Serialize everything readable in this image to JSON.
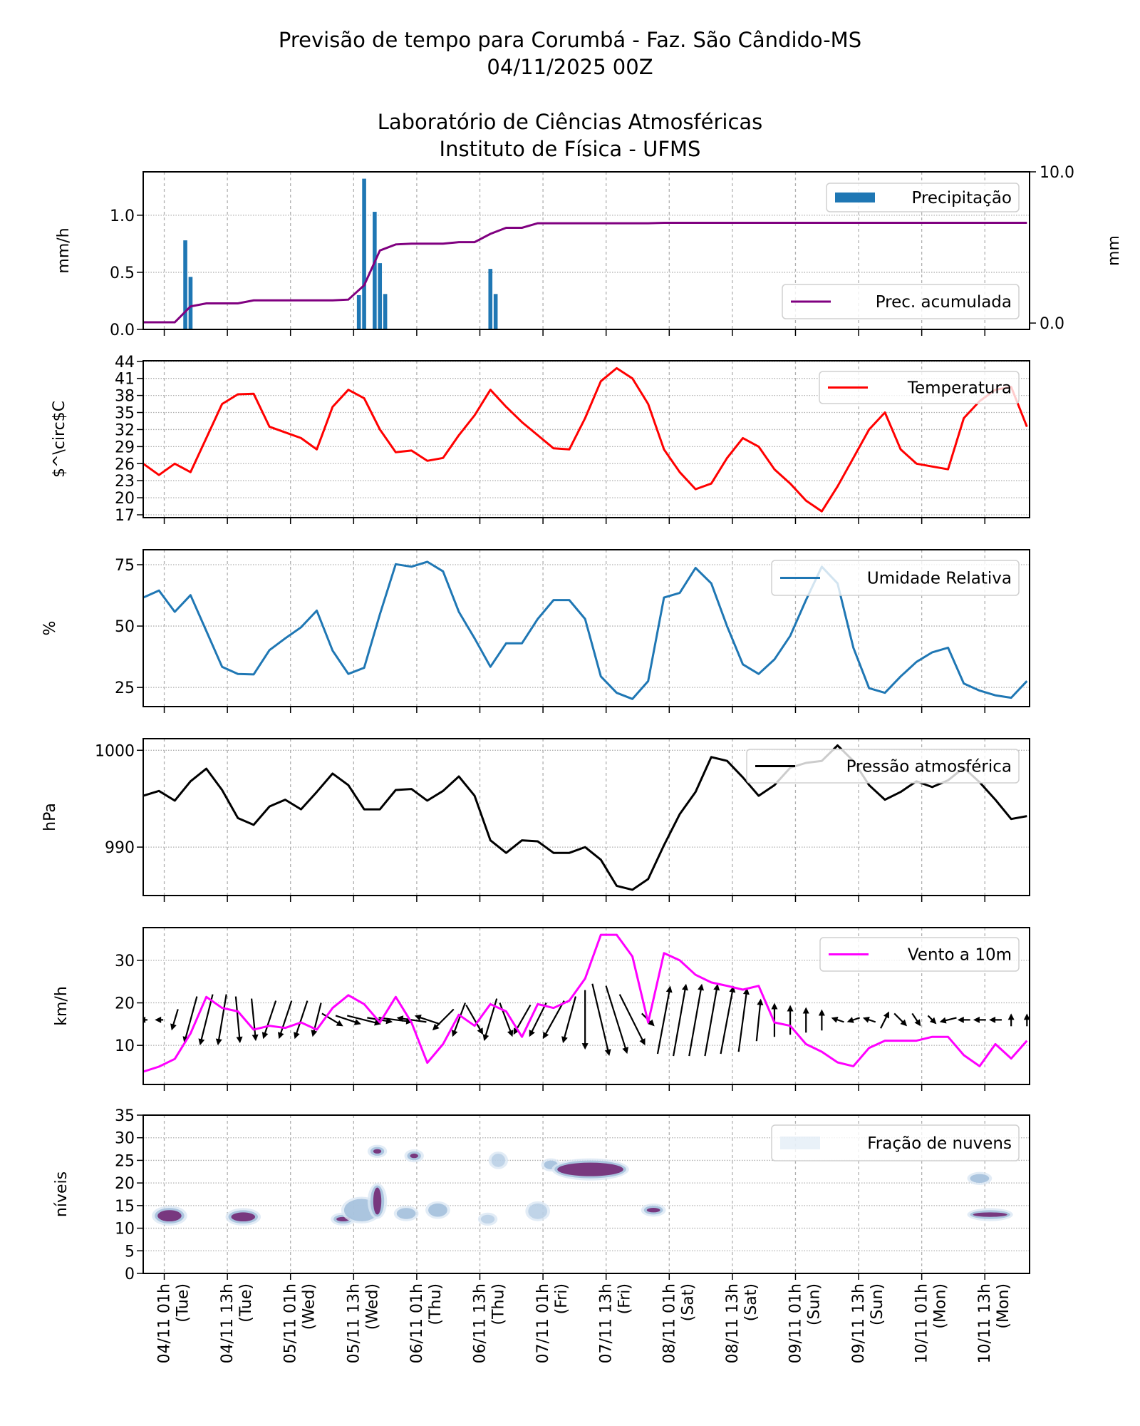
{
  "header": {
    "title_line1": "Previsão de tempo para Corumbá - Faz. São Cândido-MS",
    "title_line2": "04/11/2025 00Z",
    "subtitle_line1": "Laboratório de Ciências Atmosféricas",
    "subtitle_line2": "Instituto de Física - UFMS"
  },
  "chart_data": {
    "type": "multi-panel",
    "grid": true,
    "x": [
      "03/11 21h",
      "04/11 00h",
      "04/11 03h",
      "04/11 06h",
      "04/11 09h",
      "04/11 12h",
      "04/11 15h",
      "04/11 18h",
      "04/11 21h",
      "05/11 00h",
      "05/11 03h",
      "05/11 06h",
      "05/11 09h",
      "05/11 12h",
      "05/11 15h",
      "05/11 18h",
      "05/11 21h",
      "06/11 00h",
      "06/11 03h",
      "06/11 06h",
      "06/11 09h",
      "06/11 12h",
      "06/11 15h",
      "06/11 18h",
      "06/11 21h",
      "07/11 00h",
      "07/11 03h",
      "07/11 06h",
      "07/11 09h",
      "07/11 12h",
      "07/11 15h",
      "07/11 18h",
      "07/11 21h",
      "08/11 00h",
      "08/11 03h",
      "08/11 06h",
      "08/11 09h",
      "08/11 12h",
      "08/11 15h",
      "08/11 18h",
      "08/11 21h",
      "09/11 00h",
      "09/11 03h",
      "09/11 06h",
      "09/11 09h",
      "09/11 12h",
      "09/11 15h",
      "09/11 18h",
      "09/11 21h",
      "10/11 00h",
      "10/11 03h",
      "10/11 06h",
      "10/11 09h",
      "10/11 12h",
      "10/11 15h",
      "10/11 18h",
      "10/11 21h"
    ],
    "xticks": [
      {
        "date": "04/11 01h",
        "day": "(Tue)"
      },
      {
        "date": "04/11 13h",
        "day": "(Tue)"
      },
      {
        "date": "05/11 01h",
        "day": "(Wed)"
      },
      {
        "date": "05/11 13h",
        "day": "(Wed)"
      },
      {
        "date": "06/11 01h",
        "day": "(Thu)"
      },
      {
        "date": "06/11 13h",
        "day": "(Thu)"
      },
      {
        "date": "07/11 01h",
        "day": "(Fri)"
      },
      {
        "date": "07/11 13h",
        "day": "(Fri)"
      },
      {
        "date": "08/11 01h",
        "day": "(Sat)"
      },
      {
        "date": "08/11 13h",
        "day": "(Sat)"
      },
      {
        "date": "09/11 01h",
        "day": "(Sun)"
      },
      {
        "date": "09/11 13h",
        "day": "(Sun)"
      },
      {
        "date": "10/11 01h",
        "day": "(Mon)"
      },
      {
        "date": "10/11 13h",
        "day": "(Mon)"
      }
    ],
    "panels": [
      {
        "type": "bar+line",
        "ylabel": "mm/h",
        "ylim": [
          0,
          1.38
        ],
        "yticks": [
          "0.0",
          "0.5",
          "1.0"
        ],
        "y2label": "mm",
        "y2lim": [
          -0.42,
          10
        ],
        "y2ticks": [
          "0.0",
          "10.0"
        ],
        "bars": {
          "name": "Precipitação",
          "color": "#1f77b4",
          "values": [
            {
              "time": "04/11 05h",
              "value": 0.78
            },
            {
              "time": "04/11 06h",
              "value": 0.46
            },
            {
              "time": "05/11 14h",
              "value": 0.3
            },
            {
              "time": "05/11 15h",
              "value": 1.32
            },
            {
              "time": "05/11 17h",
              "value": 1.03
            },
            {
              "time": "05/11 18h",
              "value": 0.58
            },
            {
              "time": "05/11 19h",
              "value": 0.31
            },
            {
              "time": "06/11 15h",
              "value": 0.53
            },
            {
              "time": "06/11 16h",
              "value": 0.31
            }
          ]
        },
        "line": {
          "name": "Prec. acumulada",
          "color": "#800080",
          "axis": "right",
          "values": [
            0.05,
            0.05,
            0.05,
            1.1,
            1.3,
            1.3,
            1.3,
            1.5,
            1.5,
            1.5,
            1.5,
            1.5,
            1.5,
            1.55,
            2.5,
            4.8,
            5.2,
            5.25,
            5.25,
            5.25,
            5.35,
            5.35,
            5.9,
            6.3,
            6.3,
            6.6,
            6.6,
            6.6,
            6.6,
            6.6,
            6.6,
            6.6,
            6.6,
            6.63,
            6.63,
            6.63,
            6.63,
            6.63,
            6.63,
            6.63,
            6.63,
            6.63,
            6.63,
            6.63,
            6.63,
            6.63,
            6.63,
            6.63,
            6.63,
            6.63,
            6.63,
            6.63,
            6.63,
            6.63,
            6.63,
            6.63,
            6.63
          ]
        }
      },
      {
        "type": "line",
        "ylabel": "$^\\circ$C",
        "ylim": [
          16.5,
          44.1
        ],
        "yticks": [
          "17",
          "20",
          "23",
          "26",
          "29",
          "32",
          "35",
          "38",
          "41",
          "44"
        ],
        "series": [
          {
            "name": "Temperatura",
            "color": "#ff0000",
            "values": [
              26,
              24,
              26,
              24.5,
              30.5,
              36.5,
              38.2,
              38.3,
              32.5,
              31.5,
              30.5,
              28.5,
              36,
              39,
              37.5,
              32,
              28,
              28.3,
              26.5,
              27,
              31,
              34.5,
              39,
              36,
              33.3,
              31,
              28.7,
              28.5,
              34,
              40.5,
              42.8,
              41,
              36.5,
              28.5,
              24.5,
              21.5,
              22.5,
              27,
              30.5,
              29,
              25,
              22.5,
              19.5,
              17.6,
              22,
              27,
              32,
              35,
              28.5,
              26,
              25.5,
              25,
              34,
              37,
              39,
              39.5,
              32.5
            ]
          }
        ]
      },
      {
        "type": "line",
        "ylabel": "%",
        "ylim": [
          17.2,
          81.1
        ],
        "yticks": [
          "25",
          "50",
          "75"
        ],
        "series": [
          {
            "name": "Umidade Relativa",
            "color": "#1f77b4",
            "values": [
              61.6,
              64.5,
              55.8,
              62.6,
              48,
              33.4,
              30.5,
              30.3,
              40.2,
              45,
              49.5,
              56.3,
              40,
              30.5,
              33,
              54.8,
              75.2,
              74.2,
              76.2,
              72.3,
              55.8,
              45,
              33.4,
              43,
              43,
              52.9,
              60.6,
              60.6,
              52.9,
              29.5,
              22.8,
              20.3,
              27.6,
              61.6,
              63.5,
              73.7,
              67.4,
              49.9,
              34.4,
              30.5,
              36.4,
              46,
              60.6,
              74.2,
              67.4,
              41.2,
              24.7,
              22.8,
              29.5,
              35.4,
              39.3,
              41.2,
              26.6,
              23.7,
              21.8,
              20.8,
              27.6
            ]
          }
        ]
      },
      {
        "type": "line",
        "ylabel": "hPa",
        "ylim": [
          985.0,
          1001.2
        ],
        "yticks": [
          "990",
          "1000"
        ],
        "series": [
          {
            "name": "Pressão atmosférica",
            "color": "#000000",
            "values": [
              995.3,
              995.8,
              994.8,
              996.8,
              998.1,
              995.9,
              993,
              992.3,
              994.2,
              994.9,
              993.9,
              995.7,
              997.6,
              996.4,
              993.9,
              993.9,
              995.9,
              996,
              994.8,
              995.8,
              997.3,
              995.3,
              990.7,
              989.4,
              990.7,
              990.6,
              989.4,
              989.4,
              990,
              988.7,
              986,
              985.6,
              986.7,
              990.2,
              993.4,
              995.7,
              999.3,
              998.9,
              997.2,
              995.3,
              996.4,
              998.2,
              998.7,
              998.9,
              1000.5,
              998.9,
              996.4,
              994.9,
              995.7,
              996.8,
              996.2,
              996.9,
              998.2,
              996.7,
              994.9,
              992.9,
              993.2
            ]
          }
        ]
      },
      {
        "type": "line+quiver",
        "ylabel": "km/h",
        "ylim": [
          0.8,
          37.7
        ],
        "yticks": [
          "10",
          "20",
          "30"
        ],
        "series": [
          {
            "name": "Vento a 10m",
            "color": "#ff00ff",
            "values": [
              3.8,
              5,
              6.8,
              12.8,
              21.4,
              18.8,
              18,
              13.7,
              14.6,
              14.1,
              15.4,
              13.7,
              18.8,
              21.8,
              19.7,
              15.4,
              21.4,
              15.4,
              5.9,
              10.3,
              17.2,
              14.6,
              19.7,
              18,
              12,
              19.7,
              18.8,
              20.5,
              25.7,
              36,
              36,
              30.9,
              15.4,
              31.7,
              30,
              26.6,
              24.8,
              24,
              23.1,
              24,
              15.4,
              14.6,
              10.3,
              8.5,
              6,
              5.1,
              9.4,
              11.1,
              11.1,
              11.1,
              12,
              12,
              7.7,
              5.1,
              10.3,
              6.9,
              11.1
            ]
          }
        ],
        "quiver": {
          "color": "#000000",
          "anchor_kmh": 16,
          "u": [
            -2,
            -2,
            -1.5,
            -3,
            -3,
            -2,
            1,
            1,
            -3,
            -3,
            -3,
            -2,
            5,
            6,
            8,
            6,
            8,
            -7,
            -6,
            -5,
            -3,
            4,
            -3,
            3,
            -4,
            -4,
            -5,
            -3,
            0,
            4,
            5,
            6,
            3,
            3,
            3,
            3,
            3,
            3,
            2,
            1,
            0,
            0,
            0,
            0,
            -3,
            -3,
            -3,
            2,
            3,
            2,
            2,
            -4,
            -3,
            -3,
            -3,
            0,
            0
          ],
          "v": [
            0,
            0,
            -5,
            -11,
            -12,
            -12,
            -11,
            -10,
            -9,
            -9,
            -9,
            -8,
            -3,
            -2,
            -2,
            -1,
            -1,
            1,
            2,
            -5,
            -8,
            -7,
            -10,
            -8,
            -7,
            -8,
            -9,
            -11,
            -14,
            -17,
            -16,
            -12,
            -3,
            16,
            17,
            17,
            17,
            16,
            15,
            10,
            8,
            7,
            6,
            5,
            1,
            -1,
            1,
            4,
            -3,
            -3,
            -2,
            -1,
            0,
            0,
            0,
            3,
            3
          ]
        }
      },
      {
        "type": "contour",
        "ylabel": "níveis",
        "ylim": [
          0,
          35
        ],
        "yticks": [
          "0",
          "5",
          "10",
          "15",
          "20",
          "25",
          "30",
          "35"
        ],
        "legend": "Fração de nuvens",
        "colormap": [
          "#dbe7f4",
          "#9ebcda",
          "#8c6bb1",
          "#6e1e6e"
        ],
        "clouds": [
          {
            "start": "04/11 00h",
            "end": "04/11 04h",
            "levels": [
              11.5,
              14
            ],
            "fraction": 0.9
          },
          {
            "start": "04/11 14h",
            "end": "04/11 18h",
            "levels": [
              11.5,
              13.5
            ],
            "fraction": 0.8
          },
          {
            "start": "05/11 10h",
            "end": "05/11 12h",
            "levels": [
              11.5,
              12.5
            ],
            "fraction": 0.8
          },
          {
            "start": "05/11 12h",
            "end": "05/11 17h",
            "levels": [
              12,
              16
            ],
            "fraction": 0.3
          },
          {
            "start": "05/11 17h",
            "end": "05/11 18h",
            "levels": [
              13,
              19
            ],
            "fraction": 0.8
          },
          {
            "start": "05/11 17h",
            "end": "05/11 18h",
            "levels": [
              26.5,
              27.5
            ],
            "fraction": 0.9
          },
          {
            "start": "06/11 00h",
            "end": "06/11 01h",
            "levels": [
              25.5,
              26.5
            ],
            "fraction": 0.9
          },
          {
            "start": "05/11 22h",
            "end": "06/11 00h",
            "levels": [
              12.5,
              14
            ],
            "fraction": 0.3
          },
          {
            "start": "06/11 04h",
            "end": "06/11 06h",
            "levels": [
              13,
              15
            ],
            "fraction": 0.3
          },
          {
            "start": "06/11 16h",
            "end": "06/11 17h",
            "levels": [
              24,
              26
            ],
            "fraction": 0.25
          },
          {
            "start": "06/11 14h",
            "end": "06/11 15h",
            "levels": [
              11.5,
              12.5
            ],
            "fraction": 0.2
          },
          {
            "start": "06/11 23h",
            "end": "07/11 01h",
            "levels": [
              12.5,
              15
            ],
            "fraction": 0.2
          },
          {
            "start": "07/11 02h",
            "end": "07/11 03h",
            "levels": [
              23.5,
              24.5
            ],
            "fraction": 0.3
          },
          {
            "start": "07/11 04h",
            "end": "07/11 16h",
            "levels": [
              21.5,
              24.5
            ],
            "fraction": 0.95
          },
          {
            "start": "07/11 21h",
            "end": "07/11 23h",
            "levels": [
              13.5,
              14.5
            ],
            "fraction": 0.9
          },
          {
            "start": "10/11 11h",
            "end": "10/11 13h",
            "levels": [
              20.5,
              21.5
            ],
            "fraction": 0.5
          },
          {
            "start": "10/11 11h",
            "end": "10/11 17h",
            "levels": [
              12.5,
              13.5
            ],
            "fraction": 0.9
          }
        ]
      }
    ]
  }
}
